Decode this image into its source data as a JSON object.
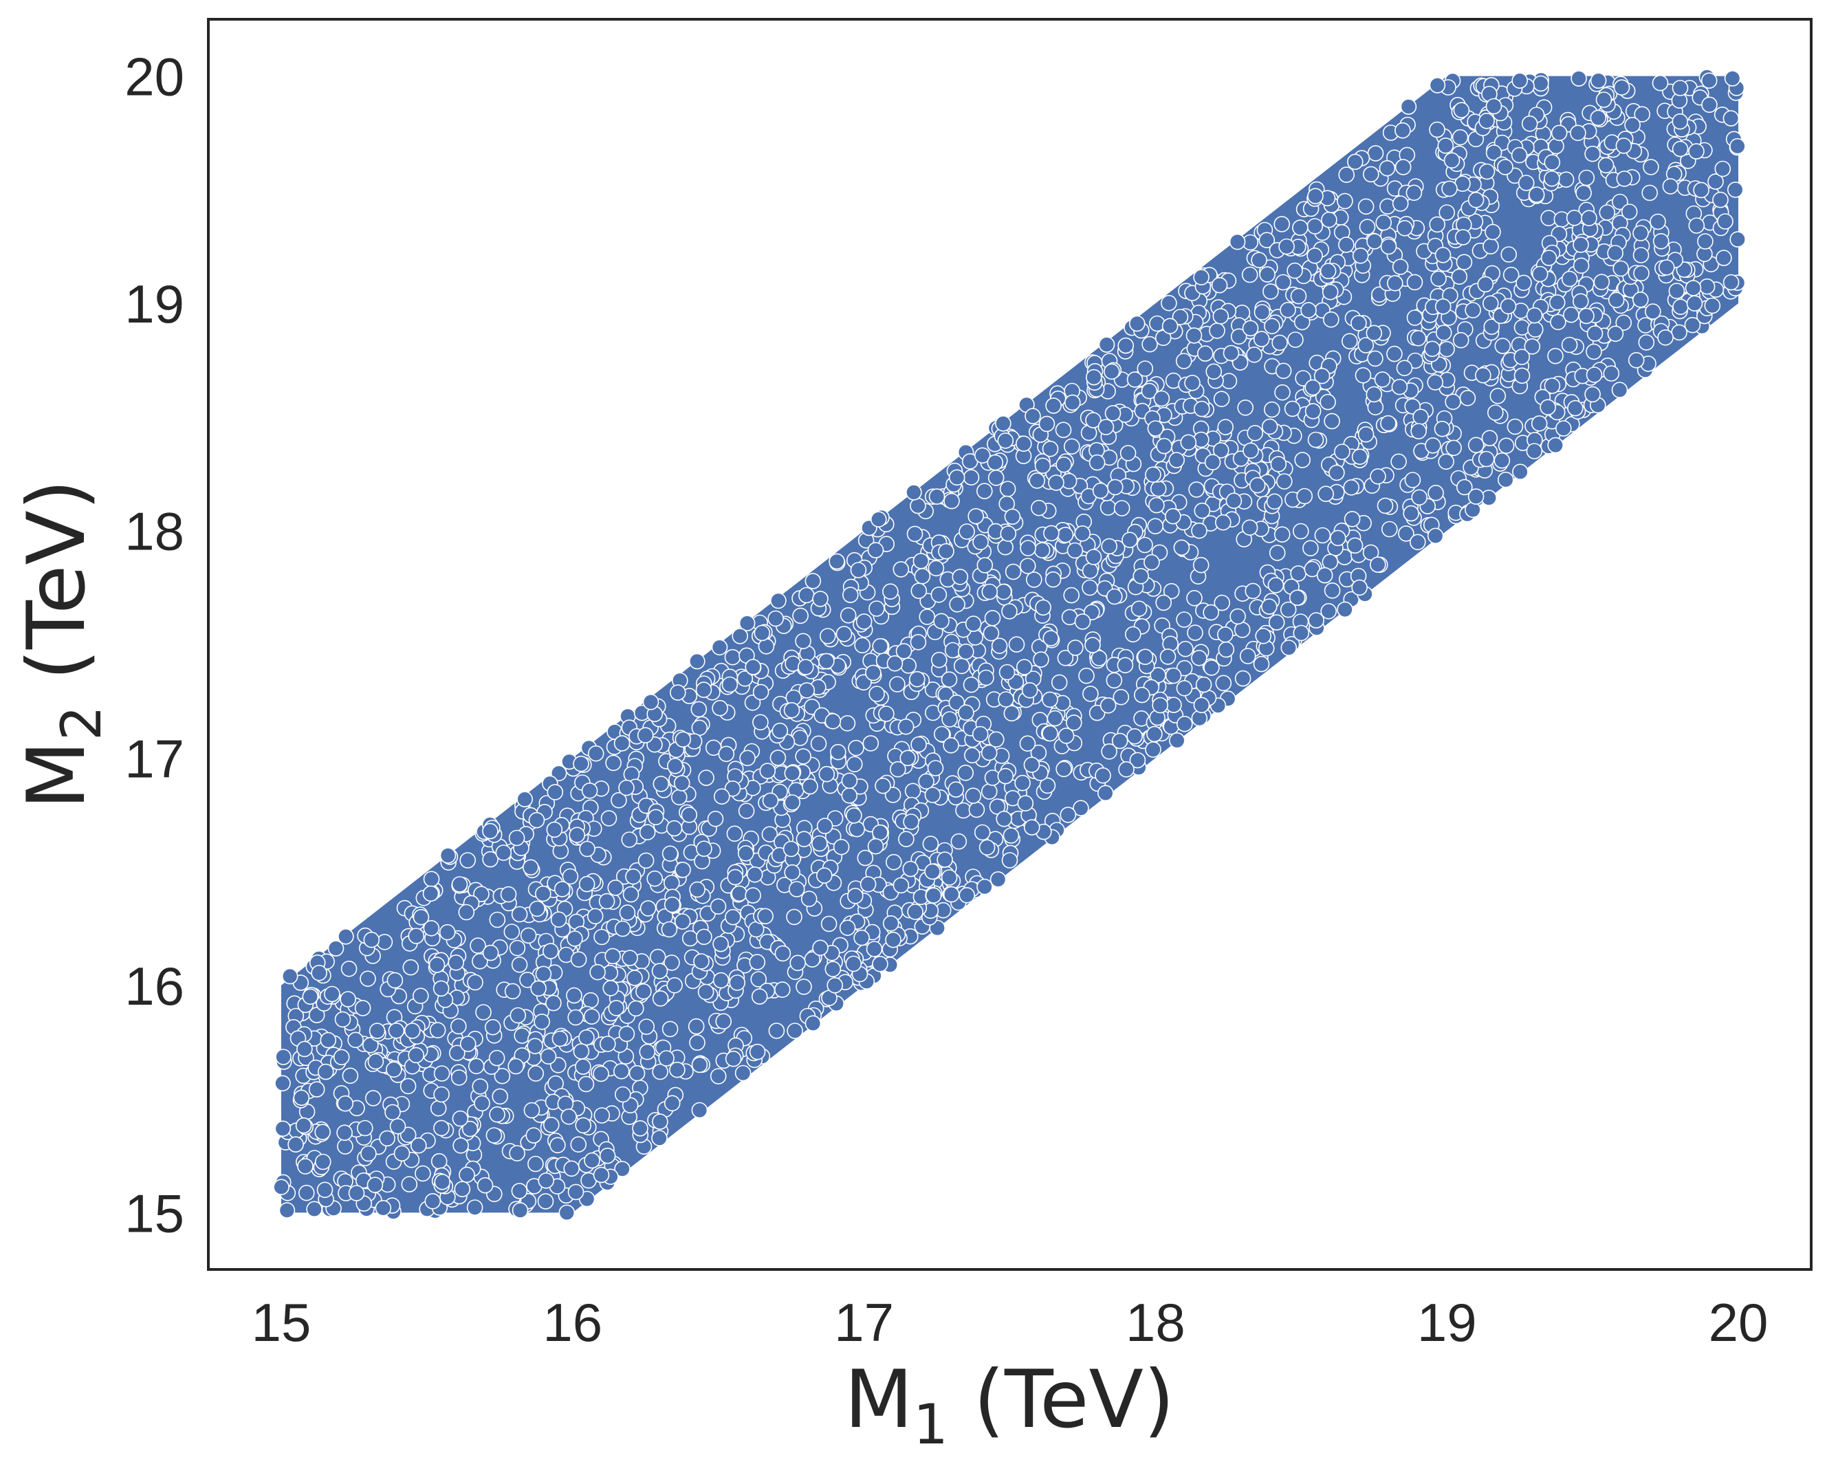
{
  "chart_data": {
    "type": "scatter",
    "title": "",
    "xlabel": {
      "main": "M",
      "sub": "1",
      "suffix": " (TeV)"
    },
    "ylabel": {
      "main": "M",
      "sub": "2",
      "suffix": " (TeV)"
    },
    "xlim": [
      14.75,
      20.25
    ],
    "ylim": [
      14.75,
      20.25
    ],
    "xticks": [
      15,
      16,
      17,
      18,
      19,
      20
    ],
    "yticks": [
      15,
      16,
      17,
      18,
      19,
      20
    ],
    "grid": false,
    "legend": "none",
    "marker_color": "#4c72b0",
    "marker_edge_color": "#ffffff",
    "frame_color": "#262626",
    "point_region": {
      "description_polygon_data_units": [
        [
          15.0,
          15.0
        ],
        [
          16.0,
          15.0
        ],
        [
          20.0,
          19.0
        ],
        [
          20.0,
          20.0
        ],
        [
          19.0,
          20.0
        ],
        [
          15.0,
          16.0
        ]
      ]
    },
    "points": [
      [
        15.02,
        15.01
      ],
      [
        15.05,
        15.3
      ],
      [
        15.08,
        15.72
      ],
      [
        15.1,
        15.95
      ],
      [
        15.03,
        16.04
      ],
      [
        15.15,
        15.1
      ],
      [
        15.22,
        15.48
      ],
      [
        15.28,
        15.9
      ],
      [
        15.31,
        16.2
      ],
      [
        15.35,
        15.02
      ],
      [
        15.4,
        15.38
      ],
      [
        15.45,
        15.8
      ],
      [
        15.48,
        16.3
      ],
      [
        15.52,
        15.05
      ],
      [
        15.55,
        15.52
      ],
      [
        15.6,
        16.1
      ],
      [
        15.64,
        16.55
      ],
      [
        15.7,
        15.12
      ],
      [
        15.74,
        15.68
      ],
      [
        15.78,
        16.4
      ],
      [
        15.82,
        15.01
      ],
      [
        15.86,
        15.45
      ],
      [
        15.9,
        16.05
      ],
      [
        15.94,
        16.85
      ],
      [
        15.98,
        15.0
      ],
      [
        16.02,
        15.3
      ],
      [
        16.05,
        16.6
      ],
      [
        16.08,
        17.02
      ],
      [
        16.12,
        15.25
      ],
      [
        16.15,
        15.9
      ],
      [
        16.2,
        16.4
      ],
      [
        16.25,
        17.1
      ],
      [
        16.3,
        15.4
      ],
      [
        16.35,
        16.0
      ],
      [
        16.4,
        16.75
      ],
      [
        16.45,
        17.3
      ],
      [
        16.5,
        15.6
      ],
      [
        16.55,
        16.3
      ],
      [
        16.6,
        17.0
      ],
      [
        16.65,
        17.55
      ],
      [
        16.7,
        15.8
      ],
      [
        16.75,
        16.6
      ],
      [
        16.8,
        17.4
      ],
      [
        16.85,
        17.7
      ],
      [
        16.9,
        16.0
      ],
      [
        16.95,
        16.9
      ],
      [
        17.0,
        17.6
      ],
      [
        17.05,
        18.05
      ],
      [
        17.1,
        16.2
      ],
      [
        17.15,
        17.0
      ],
      [
        17.2,
        17.8
      ],
      [
        17.25,
        18.15
      ],
      [
        17.3,
        16.4
      ],
      [
        17.35,
        17.2
      ],
      [
        17.4,
        17.95
      ],
      [
        17.45,
        18.3
      ],
      [
        17.5,
        16.55
      ],
      [
        17.55,
        17.4
      ],
      [
        17.6,
        18.1
      ],
      [
        17.65,
        18.55
      ],
      [
        17.7,
        16.75
      ],
      [
        17.75,
        17.6
      ],
      [
        17.8,
        18.3
      ],
      [
        17.85,
        18.7
      ],
      [
        17.9,
        16.95
      ],
      [
        17.95,
        17.8
      ],
      [
        18.0,
        18.45
      ],
      [
        18.05,
        18.9
      ],
      [
        18.1,
        17.15
      ],
      [
        18.15,
        18.0
      ],
      [
        18.2,
        18.7
      ],
      [
        18.25,
        19.1
      ],
      [
        18.3,
        17.35
      ],
      [
        18.35,
        18.2
      ],
      [
        18.4,
        18.9
      ],
      [
        18.45,
        19.25
      ],
      [
        18.5,
        17.55
      ],
      [
        18.55,
        18.4
      ],
      [
        18.6,
        19.05
      ],
      [
        18.65,
        19.45
      ],
      [
        18.7,
        17.75
      ],
      [
        18.75,
        18.6
      ],
      [
        18.8,
        19.25
      ],
      [
        18.85,
        19.6
      ],
      [
        18.9,
        17.95
      ],
      [
        18.95,
        18.8
      ],
      [
        19.0,
        19.4
      ],
      [
        19.05,
        19.85
      ],
      [
        19.1,
        18.15
      ],
      [
        19.15,
        19.0
      ],
      [
        19.2,
        19.6
      ],
      [
        19.25,
        19.98
      ],
      [
        19.3,
        18.35
      ],
      [
        19.35,
        19.2
      ],
      [
        19.4,
        18.45
      ],
      [
        19.45,
        19.75
      ],
      [
        19.5,
        18.6
      ],
      [
        19.55,
        19.4
      ],
      [
        19.6,
        19.95
      ],
      [
        19.65,
        18.75
      ],
      [
        19.7,
        19.6
      ],
      [
        19.75,
        18.85
      ],
      [
        19.8,
        19.8
      ],
      [
        19.85,
        19.0
      ],
      [
        19.9,
        19.98
      ],
      [
        19.95,
        19.2
      ],
      [
        19.99,
        19.5
      ],
      [
        19.98,
        19.99
      ],
      [
        19.52,
        19.98
      ],
      [
        18.22,
        19.08
      ]
    ]
  }
}
